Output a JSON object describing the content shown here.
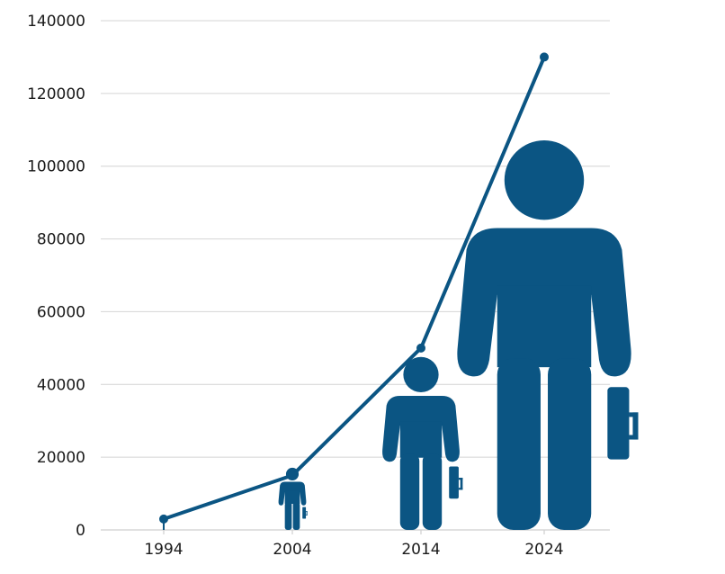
{
  "chart_data": {
    "type": "line",
    "title": "",
    "xlabel": "",
    "ylabel": "",
    "categories": [
      "1994",
      "2004",
      "2014",
      "2024"
    ],
    "series": [
      {
        "values": [
          3000,
          15000,
          50000,
          130000
        ]
      }
    ],
    "ylim": [
      0,
      140000
    ],
    "yticks": [
      "0",
      "20000",
      "40000",
      "60000",
      "80000",
      "100000",
      "120000",
      "140000"
    ],
    "grid": true,
    "legend": "none",
    "color": "#0b5583",
    "pictogram": "person-with-briefcase-icon",
    "pictogram_scaled_to_value": true
  }
}
